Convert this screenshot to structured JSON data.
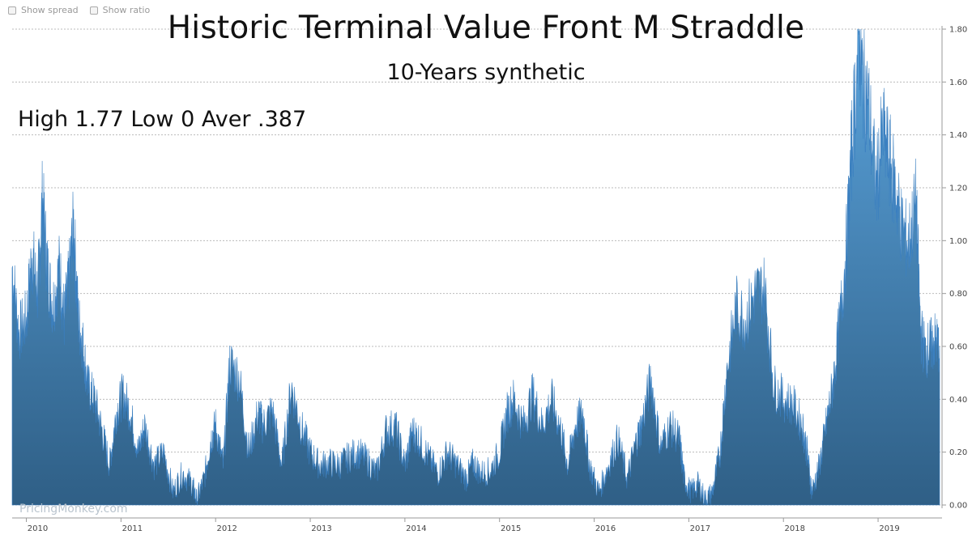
{
  "controls": {
    "show_spread_label": "Show spread",
    "show_ratio_label": "Show ratio"
  },
  "header": {
    "title": "Historic Terminal Value Front M Straddle",
    "subtitle": "10-Years synthetic",
    "stats": "High 1.77 Low 0 Aver .387"
  },
  "watermark": "PricingMonkey.com",
  "colors": {
    "fill_top": "#5aa3dc",
    "fill_bottom": "#2f5f86",
    "stroke": "#3a7fc0",
    "grid": "#bbbbbb"
  },
  "chart_data": {
    "type": "area",
    "x_tick_labels": [
      "2010",
      "2011",
      "2012",
      "2013",
      "2014",
      "2015",
      "2016",
      "2017",
      "2018",
      "2019"
    ],
    "y_tick_labels": [
      "0.00",
      "0.20",
      "0.40",
      "0.60",
      "0.80",
      "1.00",
      "1.20",
      "1.40",
      "1.60",
      "1.80"
    ],
    "ylim": [
      0,
      1.8
    ],
    "xlim": [
      2009.85,
      2019.65
    ],
    "y_axis_side": "right",
    "grid": "horizontal dashed",
    "series": [
      {
        "x": [
          2009.85,
          2009.92,
          2010.0,
          2010.06,
          2010.12,
          2010.17,
          2010.22,
          2010.28,
          2010.35,
          2010.4,
          2010.45,
          2010.5,
          2010.55,
          2010.6,
          2010.65,
          2010.72,
          2010.8,
          2010.88,
          2010.95,
          2011.02,
          2011.1,
          2011.18,
          2011.25,
          2011.35,
          2011.45,
          2011.55,
          2011.65,
          2011.75,
          2011.8,
          2011.88,
          2011.95,
          2012.0,
          2012.08,
          2012.15,
          2012.25,
          2012.35,
          2012.45,
          2012.5,
          2012.6,
          2012.7,
          2012.8,
          2012.9,
          2013.0,
          2013.1,
          2013.2,
          2013.3,
          2013.4,
          2013.5,
          2013.6,
          2013.7,
          2013.8,
          2013.9,
          2014.0,
          2014.08,
          2014.15,
          2014.25,
          2014.35,
          2014.45,
          2014.55,
          2014.65,
          2014.72,
          2014.8,
          2014.9,
          2015.0,
          2015.08,
          2015.15,
          2015.25,
          2015.35,
          2015.45,
          2015.55,
          2015.65,
          2015.72,
          2015.8,
          2015.88,
          2015.95,
          2016.05,
          2016.15,
          2016.25,
          2016.35,
          2016.45,
          2016.5,
          2016.6,
          2016.7,
          2016.8,
          2016.9,
          2016.95,
          2017.02,
          2017.1,
          2017.18,
          2017.25,
          2017.33,
          2017.4,
          2017.5,
          2017.6,
          2017.7,
          2017.8,
          2017.9,
          2018.0,
          2018.1,
          2018.2,
          2018.25,
          2018.3,
          2018.38,
          2018.45,
          2018.52,
          2018.6,
          2018.67,
          2018.73,
          2018.8,
          2018.84,
          2018.9,
          2018.98,
          2019.05,
          2019.12,
          2019.18,
          2019.25,
          2019.32,
          2019.4,
          2019.45,
          2019.5,
          2019.55,
          2019.6,
          2019.65
        ],
        "values": [
          0.9,
          0.65,
          0.7,
          0.95,
          0.8,
          1.16,
          0.9,
          0.75,
          0.9,
          0.7,
          0.85,
          1.06,
          0.7,
          0.6,
          0.45,
          0.4,
          0.28,
          0.15,
          0.35,
          0.42,
          0.35,
          0.2,
          0.3,
          0.15,
          0.2,
          0.05,
          0.12,
          0.08,
          0.02,
          0.1,
          0.25,
          0.3,
          0.15,
          0.54,
          0.48,
          0.2,
          0.35,
          0.3,
          0.36,
          0.15,
          0.45,
          0.3,
          0.2,
          0.15,
          0.16,
          0.15,
          0.18,
          0.2,
          0.17,
          0.12,
          0.28,
          0.3,
          0.15,
          0.28,
          0.25,
          0.18,
          0.12,
          0.2,
          0.15,
          0.1,
          0.16,
          0.12,
          0.13,
          0.2,
          0.35,
          0.4,
          0.3,
          0.42,
          0.3,
          0.4,
          0.28,
          0.15,
          0.3,
          0.35,
          0.15,
          0.05,
          0.15,
          0.25,
          0.1,
          0.25,
          0.3,
          0.48,
          0.22,
          0.3,
          0.25,
          0.1,
          0.05,
          0.08,
          0.02,
          0.05,
          0.2,
          0.5,
          0.75,
          0.7,
          0.8,
          0.82,
          0.45,
          0.4,
          0.38,
          0.3,
          0.2,
          0.05,
          0.15,
          0.3,
          0.45,
          0.7,
          1.0,
          1.4,
          1.77,
          1.6,
          1.5,
          1.2,
          1.4,
          1.3,
          1.2,
          1.05,
          0.98,
          1.15,
          0.65,
          0.58,
          0.6,
          0.62,
          0.6
        ]
      }
    ]
  }
}
